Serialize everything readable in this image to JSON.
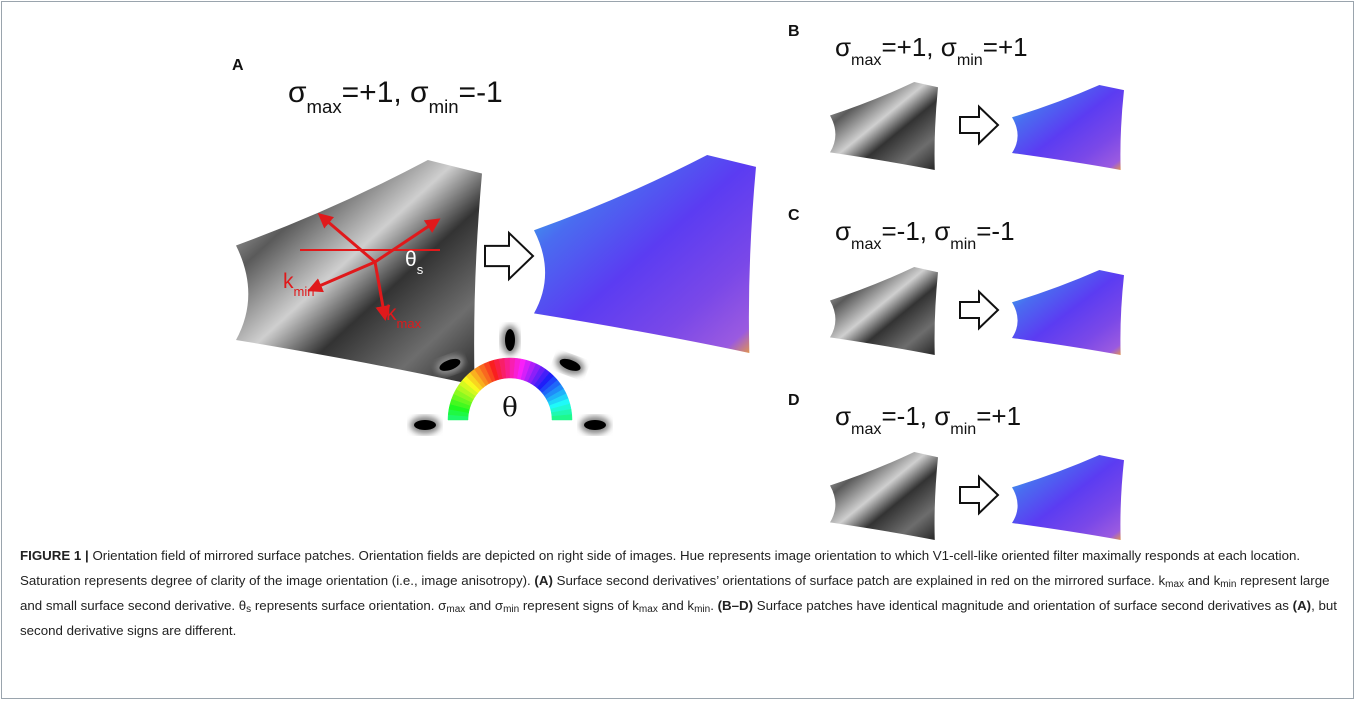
{
  "panels": [
    {
      "label": "A",
      "title": [
        {
          "t": "σ"
        },
        {
          "sub": "max"
        },
        {
          "t": "=+1, σ"
        },
        {
          "sub": "min"
        },
        {
          "t": "=-1"
        }
      ]
    },
    {
      "label": "B",
      "title": [
        {
          "t": "σ"
        },
        {
          "sub": "max"
        },
        {
          "t": "=+1, σ"
        },
        {
          "sub": "min"
        },
        {
          "t": "=+1"
        }
      ]
    },
    {
      "label": "C",
      "title": [
        {
          "t": "σ"
        },
        {
          "sub": "max"
        },
        {
          "t": "=-1, σ"
        },
        {
          "sub": "min"
        },
        {
          "t": "=-1"
        }
      ]
    },
    {
      "label": "D",
      "title": [
        {
          "t": "σ"
        },
        {
          "sub": "max"
        },
        {
          "t": "=-1, σ"
        },
        {
          "sub": "min"
        },
        {
          "t": "=+1"
        }
      ]
    }
  ],
  "annotations": {
    "k_min": [
      {
        "t": "k"
      },
      {
        "sub": "min"
      }
    ],
    "k_max": [
      {
        "t": "k"
      },
      {
        "sub": "max"
      }
    ],
    "theta_s": [
      {
        "t": "θ"
      },
      {
        "sub": "s"
      }
    ],
    "wheel": "θ"
  },
  "caption": [
    {
      "b": "FIGURE 1 |"
    },
    {
      "t": " Orientation field of mirrored surface patches. Orientation fields are depicted on right side of images. Hue represents image orientation to which V1-cell-like oriented filter maximally responds at each location. Saturation represents degree of clarity of the image orientation (i.e., image anisotropy). "
    },
    {
      "b": "(A)"
    },
    {
      "t": " Surface second derivatives’ orientations of surface patch are explained in red on the mirrored surface. k"
    },
    {
      "sub": "max"
    },
    {
      "t": " and k"
    },
    {
      "sub": "min"
    },
    {
      "t": " represent large and small surface second derivative. θ"
    },
    {
      "sub": "s"
    },
    {
      "t": " represents surface orientation. σ"
    },
    {
      "sub": "max"
    },
    {
      "t": " and σ"
    },
    {
      "sub": "min"
    },
    {
      "t": " represent signs of k"
    },
    {
      "sub": "max"
    },
    {
      "t": " and k"
    },
    {
      "sub": "min"
    },
    {
      "t": ". "
    },
    {
      "b": "(B–D)"
    },
    {
      "t": " Surface patches have identical magnitude and orientation of surface second derivatives as "
    },
    {
      "b": "(A)"
    },
    {
      "t": ", but second derivative signs are different."
    }
  ]
}
